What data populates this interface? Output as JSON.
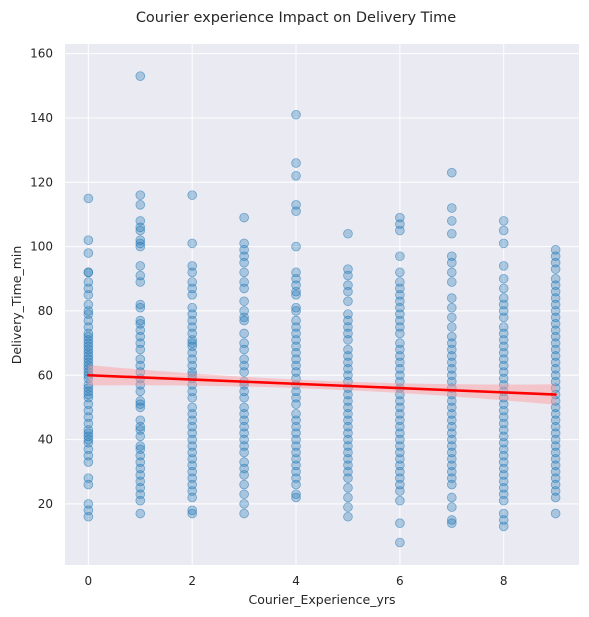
{
  "chart_data": {
    "type": "scatter",
    "title": "Courier experience Impact on Delivery Time",
    "xlabel": "Courier_Experience_yrs",
    "ylabel": "Delivery_Time_min",
    "xlim": [
      -0.45,
      9.45
    ],
    "ylim": [
      1,
      163
    ],
    "xticks": [
      "0",
      "2",
      "4",
      "6",
      "8"
    ],
    "yticks": [
      "20",
      "40",
      "60",
      "80",
      "100",
      "120",
      "140",
      "160"
    ],
    "grid": true,
    "style": "seaborn-darkgrid",
    "colors": {
      "background": "#eaeaf2",
      "grid": "#ffffff",
      "points": "#1f77b4",
      "regression": "#ff0000",
      "confidence_band": "#ff9999"
    },
    "regression": {
      "x": [
        0,
        9
      ],
      "y": [
        60,
        54
      ],
      "ci_halfwidth_ends": 3.2,
      "ci_halfwidth_mid": 1.3
    },
    "series": [
      {
        "x_group": 0,
        "y": [
          115,
          102,
          98,
          92,
          92,
          89,
          87,
          85,
          82,
          80,
          79,
          77,
          75,
          73,
          72,
          71,
          70,
          69,
          68,
          67,
          66,
          65,
          64,
          63,
          62,
          61,
          60,
          59,
          57,
          56,
          55,
          54,
          53,
          51,
          49,
          47,
          45,
          43,
          42,
          41,
          40,
          39,
          37,
          35,
          33,
          28,
          26,
          20,
          18,
          16
        ]
      },
      {
        "x_group": 1,
        "y": [
          153,
          116,
          113,
          108,
          106,
          105,
          102,
          101,
          100,
          94,
          91,
          89,
          82,
          81,
          77,
          76,
          74,
          72,
          70,
          68,
          65,
          63,
          61,
          59,
          57,
          55,
          52,
          51,
          50,
          46,
          44,
          43,
          41,
          38,
          37,
          35,
          33,
          31,
          29,
          27,
          25,
          23,
          21,
          17
        ]
      },
      {
        "x_group": 2,
        "y": [
          116,
          101,
          94,
          92,
          89,
          87,
          85,
          81,
          79,
          77,
          75,
          73,
          71,
          70,
          69,
          67,
          65,
          63,
          61,
          60,
          59,
          57,
          55,
          53,
          50,
          48,
          46,
          44,
          42,
          40,
          38,
          36,
          34,
          32,
          30,
          28,
          26,
          24,
          22,
          18,
          17
        ]
      },
      {
        "x_group": 3,
        "y": [
          109,
          101,
          99,
          97,
          95,
          92,
          89,
          87,
          83,
          80,
          78,
          77,
          73,
          70,
          68,
          65,
          63,
          61,
          58,
          57,
          55,
          53,
          50,
          48,
          46,
          44,
          42,
          40,
          38,
          36,
          33,
          31,
          29,
          26,
          23,
          20,
          17
        ]
      },
      {
        "x_group": 4,
        "y": [
          141,
          126,
          122,
          113,
          111,
          100,
          92,
          90,
          88,
          86,
          85,
          81,
          80,
          77,
          75,
          73,
          71,
          69,
          67,
          65,
          63,
          61,
          59,
          57,
          55,
          53,
          51,
          48,
          46,
          44,
          42,
          40,
          38,
          36,
          34,
          32,
          30,
          28,
          26,
          23,
          22
        ]
      },
      {
        "x_group": 5,
        "y": [
          104,
          93,
          91,
          88,
          86,
          83,
          79,
          77,
          75,
          73,
          71,
          68,
          66,
          64,
          62,
          60,
          58,
          56,
          54,
          52,
          50,
          48,
          46,
          44,
          42,
          40,
          38,
          36,
          34,
          32,
          30,
          28,
          25,
          22,
          19,
          16
        ]
      },
      {
        "x_group": 6,
        "y": [
          109,
          107,
          105,
          97,
          92,
          89,
          87,
          85,
          83,
          81,
          79,
          77,
          75,
          73,
          70,
          68,
          66,
          64,
          62,
          60,
          58,
          56,
          54,
          52,
          50,
          48,
          46,
          44,
          42,
          40,
          38,
          36,
          34,
          32,
          30,
          28,
          26,
          24,
          21,
          14,
          8
        ]
      },
      {
        "x_group": 7,
        "y": [
          123,
          112,
          108,
          104,
          97,
          95,
          92,
          89,
          84,
          81,
          78,
          75,
          72,
          70,
          68,
          66,
          64,
          62,
          60,
          58,
          56,
          54,
          52,
          50,
          48,
          46,
          44,
          42,
          40,
          38,
          36,
          34,
          32,
          30,
          28,
          26,
          22,
          19,
          15,
          14
        ]
      },
      {
        "x_group": 8,
        "y": [
          108,
          105,
          101,
          94,
          90,
          87,
          84,
          82,
          80,
          78,
          75,
          73,
          71,
          69,
          67,
          65,
          63,
          61,
          59,
          57,
          55,
          53,
          51,
          49,
          47,
          45,
          43,
          41,
          39,
          37,
          35,
          33,
          31,
          29,
          27,
          25,
          23,
          21,
          17,
          15,
          13
        ]
      },
      {
        "x_group": 9,
        "y": [
          99,
          97,
          95,
          93,
          90,
          88,
          86,
          84,
          82,
          80,
          78,
          76,
          74,
          72,
          70,
          68,
          66,
          64,
          62,
          60,
          58,
          56,
          54,
          52,
          50,
          48,
          46,
          44,
          42,
          40,
          38,
          36,
          34,
          32,
          30,
          28,
          26,
          24,
          22,
          17
        ]
      }
    ]
  }
}
